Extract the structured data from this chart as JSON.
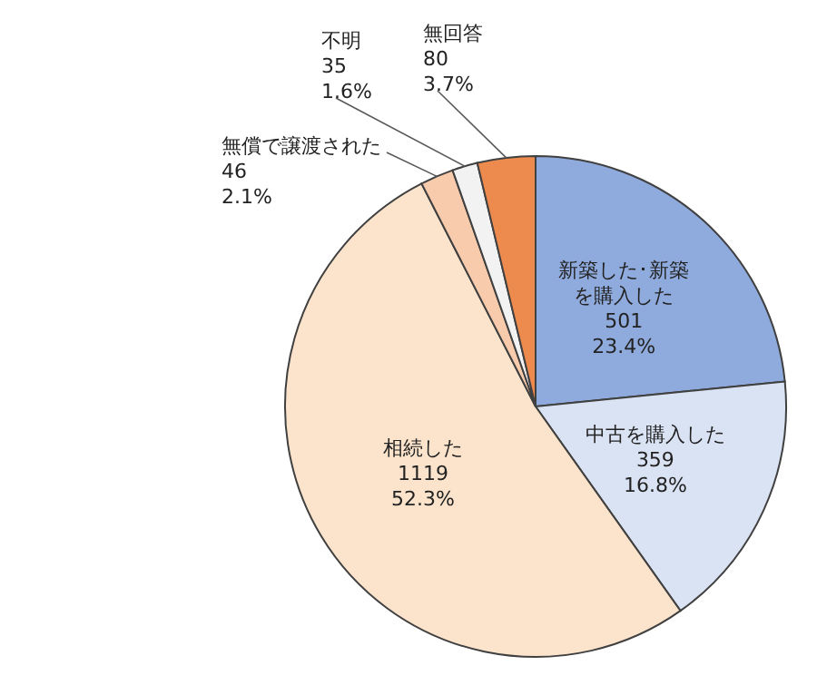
{
  "chart_data": {
    "type": "pie",
    "categories": [
      "新築した･新築を購入した",
      "中古を購入した",
      "相続した",
      "無償で譲渡された",
      "不明",
      "無回答"
    ],
    "values": [
      501,
      359,
      1119,
      46,
      35,
      80
    ],
    "value_labels": [
      "501\n23.4%",
      "359\n16.8%",
      "1119\n52.3%",
      "46\n2.1%",
      "35\n1.6%",
      "80\n3.7%"
    ],
    "colors": [
      "#8faadc",
      "#dae3f3",
      "#fce4cc",
      "#f8cbad",
      "#f2f2f2",
      "#ed8b4f"
    ]
  }
}
